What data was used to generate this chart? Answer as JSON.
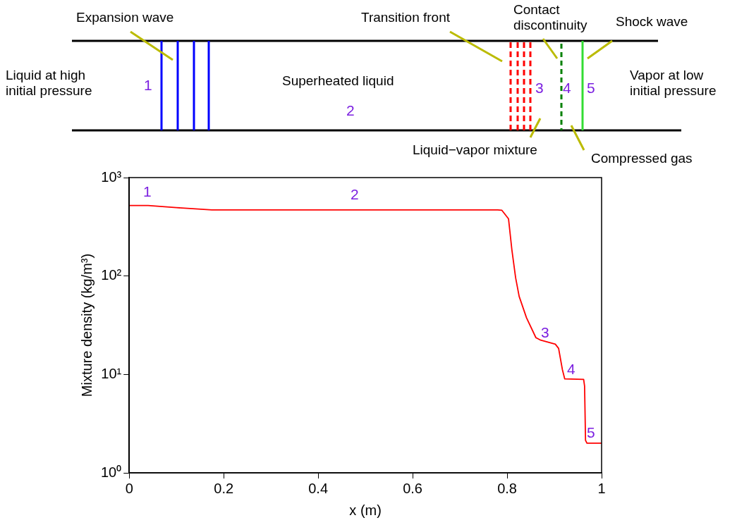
{
  "chart_data": {
    "type": "line",
    "xlabel": "x (m)",
    "ylabel": "Mixture density (kg/m³)",
    "x": [
      0,
      0.04,
      0.1,
      0.175,
      0.5,
      0.78,
      0.789,
      0.803,
      0.81,
      0.818,
      0.8255,
      0.841,
      0.861,
      0.871,
      0.902,
      0.909,
      0.917,
      0.922,
      0.962,
      0.964,
      0.966,
      0.969,
      1
    ],
    "series": [
      {
        "color": "#ff0000",
        "values": [
          520,
          520,
          495,
          470,
          470,
          470,
          465,
          381,
          186,
          96,
          62,
          37.7,
          23.6,
          22.3,
          20.3,
          18.4,
          11.2,
          9.0,
          8.9,
          7.6,
          2.14,
          2.0,
          2.0
        ]
      }
    ],
    "xlim": [
      0,
      1
    ],
    "xticks": [
      0,
      0.2,
      0.4,
      0.6,
      0.8,
      1
    ],
    "ylim": [
      1,
      1000
    ],
    "yticks": [
      {
        "value": 1,
        "label": "10⁰"
      },
      {
        "value": 10,
        "label": "10¹"
      },
      {
        "value": 100,
        "label": "10²"
      },
      {
        "value": 1000,
        "label": "10³"
      }
    ],
    "log": "y",
    "grid": false,
    "legend": false,
    "marker": "none",
    "line_style": "solid",
    "annotations": [
      "Expansion wave",
      "Liquid at high initial pressure",
      "1",
      "Superheated liquid",
      "2",
      "Transition front",
      "Contact discontinuity",
      "3",
      "4",
      "5",
      "Shock wave",
      "Vapor at low initial pressure",
      "Liquid−vapor mixture",
      "Compressed gas",
      "1",
      "2",
      "3",
      "4",
      "5"
    ]
  }
}
